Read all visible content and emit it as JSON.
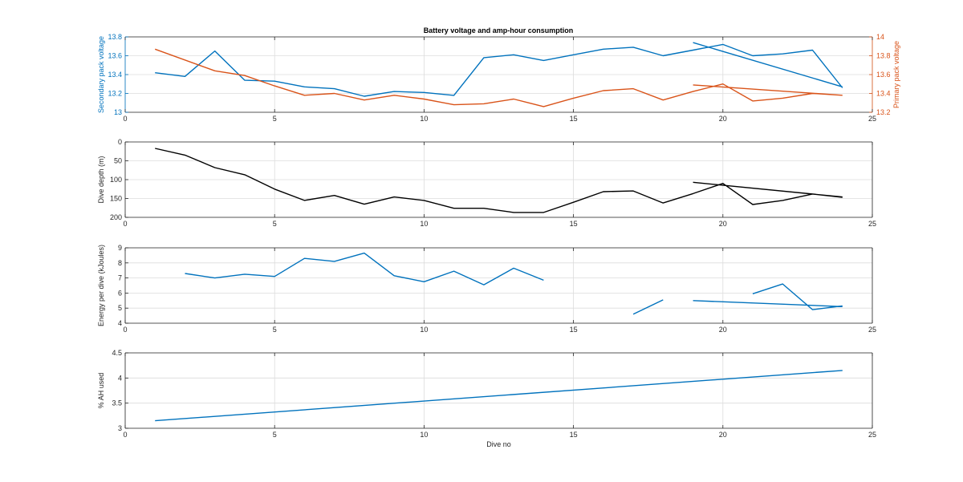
{
  "figure_title": "Battery voltage and amp-hour consumption",
  "colors": {
    "blue": "#0072bd",
    "orange": "#d95319",
    "black": "#000000",
    "grid": "#dcdcdc",
    "axis": "#262626"
  },
  "chart_data": [
    {
      "type": "line",
      "title": "Battery voltage and amp-hour consumption",
      "xlabel": "",
      "ylabel": "Secondary pack voltage",
      "ylabel_right": "Primary pack voltage",
      "xlim": [
        0,
        25
      ],
      "ylim": [
        13,
        13.8
      ],
      "ylim_right": [
        13.2,
        14
      ],
      "x_ticks": [
        "0",
        "5",
        "10",
        "15",
        "20",
        "25"
      ],
      "y_ticks": [
        "13",
        "13.2",
        "13.4",
        "13.6",
        "13.8"
      ],
      "y_ticks_right": [
        "13.2",
        "13.4",
        "13.6",
        "13.8",
        "14"
      ],
      "grid": true,
      "series": [
        {
          "axis": "left",
          "color": "blue",
          "x": [
            1,
            2,
            3,
            4,
            5,
            6,
            7,
            8,
            9,
            10,
            11,
            12,
            13,
            14,
            15,
            16,
            17,
            18,
            19,
            20,
            21,
            22,
            23,
            24,
            null,
            19,
            24
          ],
          "y": [
            13.42,
            13.38,
            13.65,
            13.34,
            13.33,
            13.27,
            13.25,
            13.17,
            13.22,
            13.21,
            13.18,
            13.58,
            13.61,
            13.55,
            13.61,
            13.67,
            13.69,
            13.6,
            13.66,
            13.72,
            13.6,
            13.62,
            13.66,
            13.26,
            null,
            13.74,
            13.27
          ]
        },
        {
          "axis": "right",
          "color": "orange",
          "x": [
            1,
            3,
            4,
            5,
            6,
            7,
            8,
            9,
            10,
            11,
            12,
            13,
            14,
            15,
            16,
            17,
            18,
            19,
            20,
            21,
            22,
            23,
            24,
            null,
            19,
            24
          ],
          "y": [
            13.87,
            13.64,
            13.59,
            13.48,
            13.38,
            13.4,
            13.33,
            13.38,
            13.34,
            13.28,
            13.29,
            13.34,
            13.26,
            13.35,
            13.43,
            13.45,
            13.33,
            13.42,
            13.5,
            13.32,
            13.35,
            13.4,
            13.38,
            null,
            13.49,
            13.38
          ]
        }
      ]
    },
    {
      "type": "line",
      "xlabel": "",
      "ylabel": "Dive depth (m)",
      "xlim": [
        0,
        25
      ],
      "ylim": [
        0,
        200
      ],
      "y_reversed": true,
      "x_ticks": [
        "0",
        "5",
        "10",
        "15",
        "20",
        "25"
      ],
      "y_ticks": [
        "0",
        "50",
        "100",
        "150",
        "200"
      ],
      "grid": true,
      "series": [
        {
          "color": "black",
          "x": [
            1,
            2,
            3,
            4,
            5,
            6,
            7,
            8,
            9,
            10,
            11,
            12,
            13,
            14,
            15,
            16,
            17,
            18,
            19,
            20,
            21,
            22,
            23,
            24,
            null,
            19,
            24
          ],
          "y": [
            17,
            35,
            68,
            87,
            125,
            155,
            142,
            165,
            146,
            155,
            176,
            176,
            187,
            187,
            160,
            132,
            130,
            162,
            137,
            110,
            166,
            155,
            138,
            147,
            null,
            107,
            146
          ]
        }
      ]
    },
    {
      "type": "line",
      "xlabel": "",
      "ylabel": "Energy per dive (kJoules)",
      "xlim": [
        0,
        25
      ],
      "ylim": [
        4,
        9
      ],
      "x_ticks": [
        "0",
        "5",
        "10",
        "15",
        "20",
        "25"
      ],
      "y_ticks": [
        "4",
        "5",
        "6",
        "7",
        "8",
        "9"
      ],
      "grid": true,
      "series": [
        {
          "color": "blue",
          "x": [
            2,
            3,
            4,
            5,
            6,
            7,
            8,
            9,
            10,
            11,
            12,
            13,
            14,
            null,
            17,
            18,
            null,
            21,
            22,
            23,
            24,
            null,
            19,
            24
          ],
          "y": [
            7.3,
            7.0,
            7.25,
            7.1,
            8.3,
            8.1,
            8.65,
            7.15,
            6.75,
            7.45,
            6.55,
            7.65,
            6.85,
            null,
            4.6,
            5.55,
            null,
            5.95,
            6.6,
            4.9,
            5.15,
            null,
            5.5,
            5.1
          ]
        }
      ]
    },
    {
      "type": "line",
      "xlabel": "Dive no",
      "ylabel": "% AH used",
      "xlim": [
        0,
        25
      ],
      "ylim": [
        3,
        4.5
      ],
      "x_ticks": [
        "0",
        "5",
        "10",
        "15",
        "20",
        "25"
      ],
      "y_ticks": [
        "3",
        "3.5",
        "4",
        "4.5"
      ],
      "grid": true,
      "series": [
        {
          "color": "blue",
          "x": [
            1,
            24
          ],
          "y": [
            3.15,
            4.15
          ]
        }
      ]
    }
  ]
}
